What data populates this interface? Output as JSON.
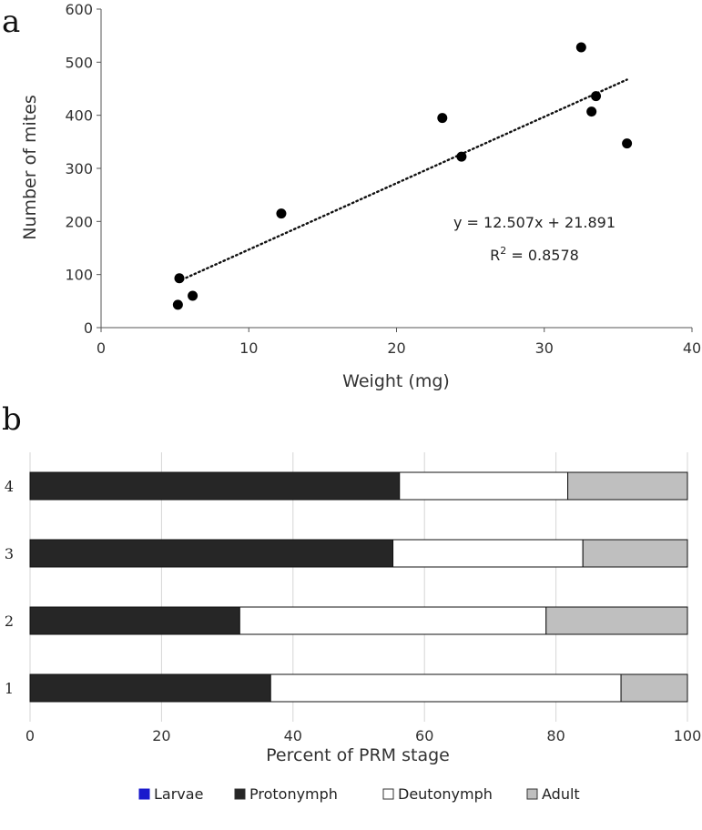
{
  "chart_data": [
    {
      "panel": "a",
      "type": "scatter",
      "xlabel": "Weight (mg)",
      "ylabel": "Number of mites",
      "xlim": [
        0,
        40
      ],
      "ylim": [
        0,
        600
      ],
      "xticks": [
        "0",
        "10",
        "20",
        "30",
        "40"
      ],
      "yticks": [
        "0",
        "100",
        "200",
        "300",
        "400",
        "500",
        "600"
      ],
      "points": [
        {
          "x": 5.2,
          "y": 43
        },
        {
          "x": 5.3,
          "y": 93
        },
        {
          "x": 6.2,
          "y": 60
        },
        {
          "x": 12.2,
          "y": 215
        },
        {
          "x": 23.1,
          "y": 395
        },
        {
          "x": 24.4,
          "y": 322
        },
        {
          "x": 32.5,
          "y": 528
        },
        {
          "x": 33.2,
          "y": 407
        },
        {
          "x": 33.5,
          "y": 436
        },
        {
          "x": 35.6,
          "y": 347
        }
      ],
      "trendline": {
        "slope": 12.507,
        "intercept": 21.891,
        "x_range": [
          5.2,
          35.6
        ],
        "style": "dotted"
      },
      "equation": "y = 12.507x + 21.891",
      "r2_label": "R",
      "r2_sup": "2",
      "r2_value": " = 0.8578"
    },
    {
      "panel": "b",
      "type": "bar",
      "orientation": "horizontal",
      "stacked": true,
      "xlabel": "Percent of PRM stage",
      "xlim": [
        0,
        100
      ],
      "xticks": [
        "0",
        "20",
        "40",
        "60",
        "80",
        "100"
      ],
      "categories": [
        "4",
        "3",
        "2",
        "1"
      ],
      "grid": true,
      "legend_position": "bottom",
      "series": [
        {
          "name": "Larvae",
          "color": "#1a1acc",
          "values": [
            0,
            0,
            0,
            0
          ]
        },
        {
          "name": "Protonymph",
          "color": "#262626",
          "values": [
            56.2,
            55.2,
            31.9,
            36.6
          ]
        },
        {
          "name": "Deutonymph",
          "color": "#ffffff",
          "values": [
            25.6,
            28.9,
            46.6,
            53.3
          ]
        },
        {
          "name": "Adult",
          "color": "#bfbfbf",
          "values": [
            18.2,
            15.9,
            21.5,
            10.1
          ]
        }
      ]
    }
  ]
}
